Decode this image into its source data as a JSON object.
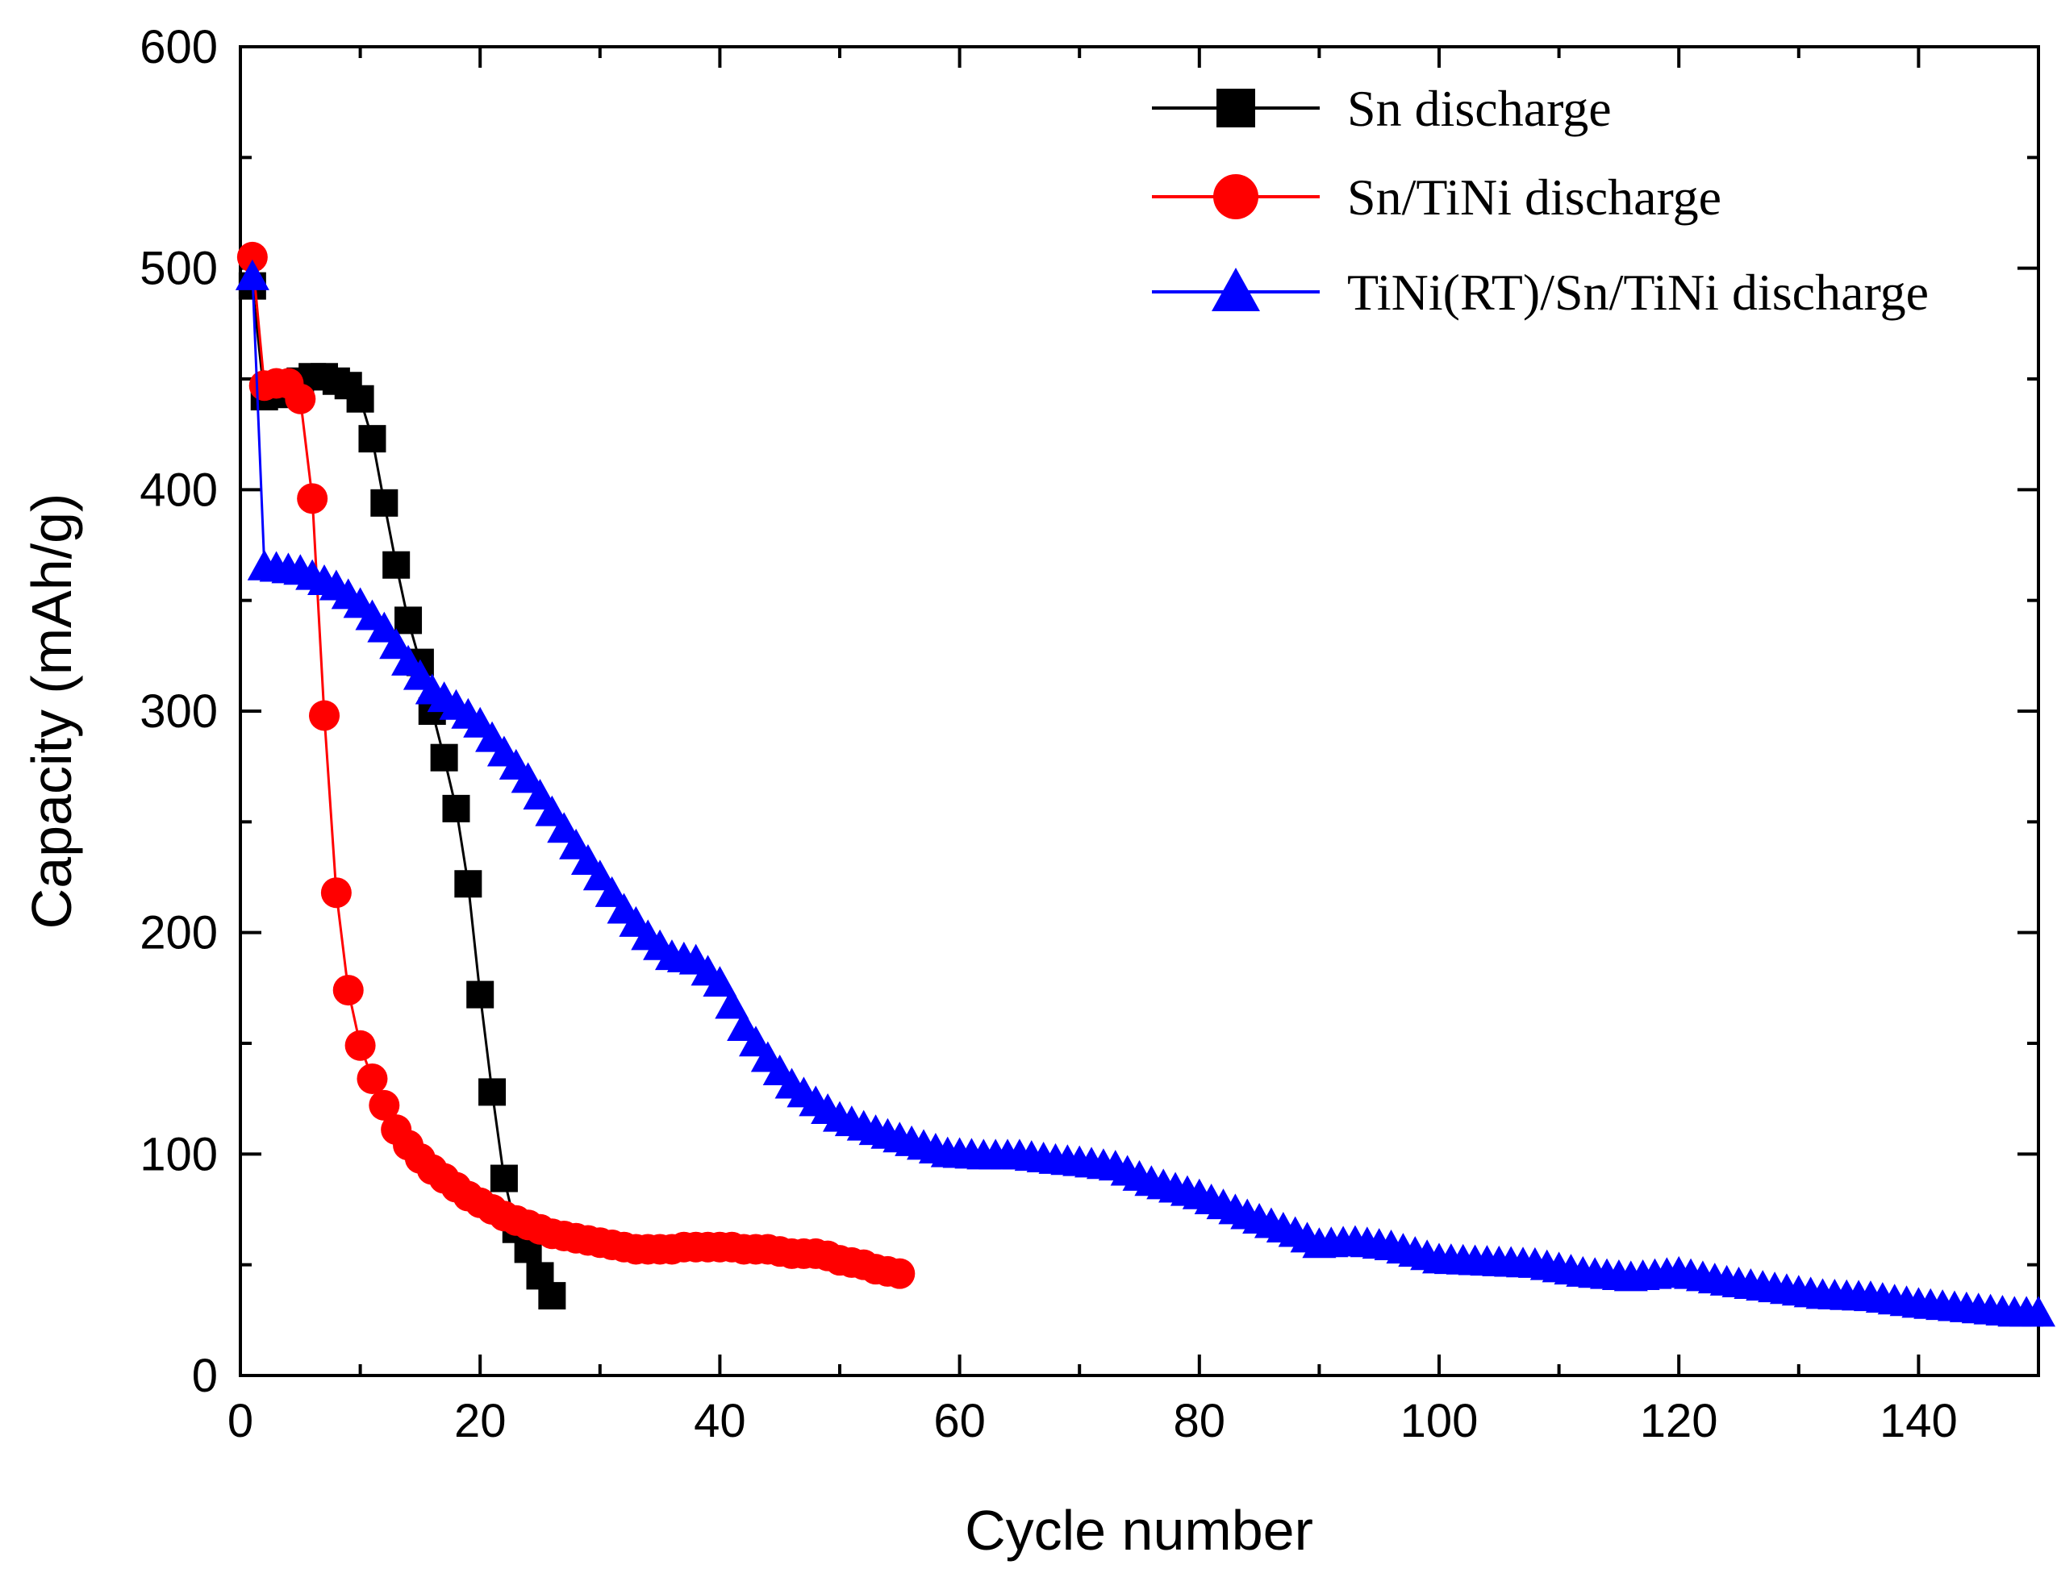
{
  "chart_data": {
    "type": "line",
    "title": "",
    "xlabel": "Cycle number",
    "ylabel": "Capacity (mAh/g)",
    "xlim": [
      0,
      150
    ],
    "ylim": [
      0,
      600
    ],
    "x_ticks": [
      0,
      20,
      40,
      60,
      80,
      100,
      120,
      140
    ],
    "y_ticks": [
      0,
      100,
      200,
      300,
      400,
      500,
      600
    ],
    "grid": false,
    "legend_position": "top-right",
    "series": [
      {
        "name": "Sn discharge",
        "color": "#000000",
        "marker": "square",
        "x": [
          1,
          2,
          3,
          4,
          5,
          6,
          7,
          8,
          9,
          10,
          11,
          12,
          13,
          14,
          15,
          16,
          17,
          18,
          19,
          20,
          21,
          22,
          23,
          24,
          25,
          26
        ],
        "y": [
          492,
          442,
          443,
          445,
          449,
          451,
          451,
          449,
          447,
          441,
          423,
          394,
          366,
          341,
          322,
          300,
          279,
          256,
          222,
          172,
          128,
          89,
          66,
          57,
          45,
          36
        ]
      },
      {
        "name": "Sn/TiNi discharge",
        "color": "#ff0000",
        "marker": "circle",
        "x": [
          1,
          2,
          3,
          4,
          5,
          6,
          7,
          8,
          9,
          10,
          11,
          12,
          13,
          14,
          15,
          16,
          17,
          18,
          19,
          20,
          21,
          22,
          23,
          24,
          25,
          26,
          27,
          28,
          29,
          30,
          31,
          32,
          33,
          34,
          35,
          36,
          37,
          38,
          39,
          40,
          41,
          42,
          43,
          44,
          45,
          46,
          47,
          48,
          49,
          50,
          51,
          52,
          53,
          54,
          55
        ],
        "y": [
          505,
          447,
          448,
          448,
          441,
          396,
          298,
          218,
          174,
          149,
          134,
          122,
          111,
          104,
          98,
          93,
          89,
          85,
          81,
          78,
          75,
          72,
          70,
          68,
          66,
          64,
          63,
          62,
          61,
          60,
          59,
          58,
          57,
          57,
          57,
          57,
          58,
          58,
          58,
          58,
          58,
          57,
          57,
          57,
          56,
          55,
          55,
          55,
          54,
          52,
          51,
          50,
          48,
          47,
          46
        ]
      },
      {
        "name": "TiNi(RT)/Sn/TiNi discharge",
        "color": "#0000ff",
        "marker": "triangle",
        "x": [
          1,
          2,
          5,
          8,
          10,
          12,
          14,
          16,
          18,
          20,
          22,
          24,
          26,
          28,
          30,
          32,
          34,
          36,
          38,
          40,
          42,
          44,
          46,
          48,
          50,
          53,
          56,
          59,
          62,
          65,
          68,
          70,
          73,
          76,
          80,
          84,
          88,
          90,
          93,
          96,
          100,
          104,
          108,
          112,
          116,
          120,
          124,
          128,
          132,
          136,
          140,
          144,
          148,
          150
        ],
        "y": [
          497,
          366,
          364,
          357,
          349,
          338,
          323,
          310,
          303,
          295,
          282,
          270,
          255,
          240,
          226,
          211,
          199,
          190,
          188,
          178,
          158,
          144,
          132,
          124,
          117,
          111,
          106,
          101,
          100,
          100,
          98,
          97,
          95,
          88,
          82,
          73,
          65,
          60,
          61,
          59,
          53,
          52,
          51,
          47,
          45,
          47,
          43,
          40,
          37,
          36,
          33,
          31,
          29,
          29
        ]
      }
    ]
  }
}
